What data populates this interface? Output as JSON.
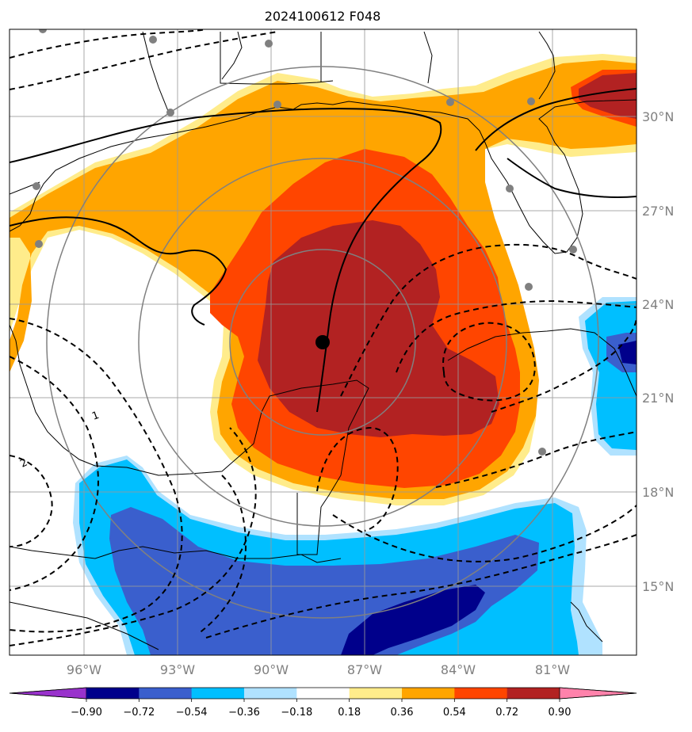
{
  "title": "2024100612 F048",
  "lon_labels": [
    "96°W",
    "93°W",
    "90°W",
    "87°W",
    "84°W",
    "81°W"
  ],
  "lat_labels": [
    "30°N",
    "27°N",
    "24°N",
    "21°N",
    "18°N",
    "15°N"
  ],
  "colorbar": {
    "tick_labels": [
      "−0.90",
      "−0.72",
      "−0.54",
      "−0.36",
      "−0.18",
      "0.18",
      "0.36",
      "0.54",
      "0.72",
      "0.90"
    ],
    "colors": [
      "#9932cc",
      "#00008b",
      "#3a5fcd",
      "#00bfff",
      "#b0e2ff",
      "#ffffff",
      "#ffec8b",
      "#ffa500",
      "#ff4500",
      "#b22222",
      "#ff82ab"
    ]
  },
  "contour_labels": [
    "1",
    "2"
  ],
  "colors": {
    "grid": "#999999",
    "range_rings": "#808080",
    "coast": "#000000",
    "center_marker": "#000000",
    "stations": "#808080"
  }
}
